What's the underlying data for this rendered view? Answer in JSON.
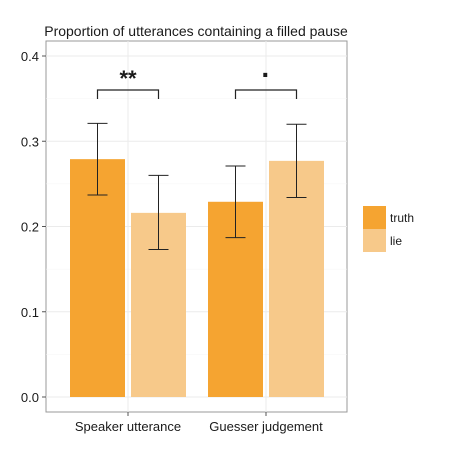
{
  "chart_data": {
    "type": "bar",
    "title": "Proportion of utterances containing a filled pause",
    "xlabel": "",
    "ylabel": "",
    "categories": [
      "Speaker utterance",
      "Guesser judgement"
    ],
    "ylim": [
      0,
      0.4
    ],
    "yticks": [
      "0.0",
      "0.1",
      "0.2",
      "0.3",
      "0.4"
    ],
    "grid": true,
    "legend_position": "right",
    "series": [
      {
        "name": "truth",
        "color": "#F5A431",
        "values": [
          0.279,
          0.229
        ],
        "error_low": [
          0.237,
          0.187
        ],
        "error_high": [
          0.321,
          0.271
        ]
      },
      {
        "name": "lie",
        "color": "#F7C98A",
        "values": [
          0.216,
          0.277
        ],
        "error_low": [
          0.173,
          0.234
        ],
        "error_high": [
          0.26,
          0.32
        ]
      }
    ],
    "annotations": [
      {
        "category": "Speaker utterance",
        "text": "**",
        "y": 0.36
      },
      {
        "category": "Guesser judgement",
        "text": "·",
        "y": 0.36
      }
    ]
  }
}
